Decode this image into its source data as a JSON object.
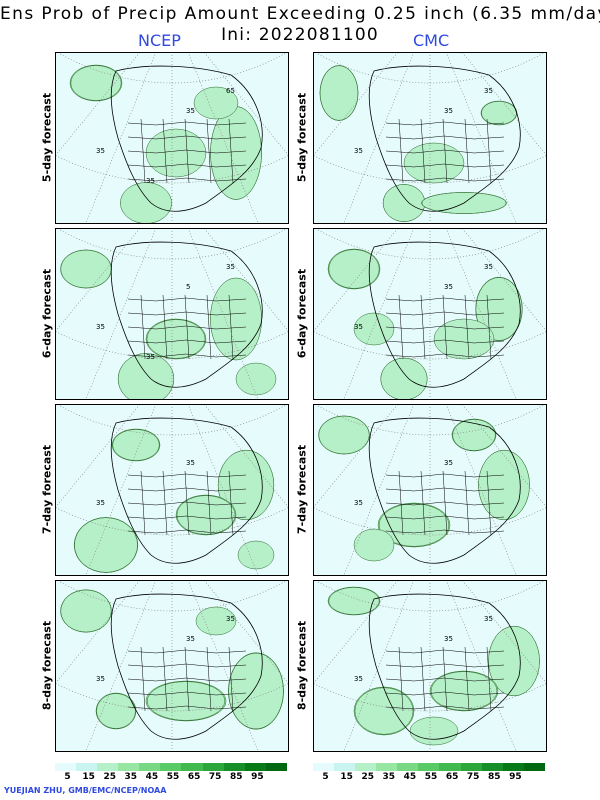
{
  "header": {
    "title": "Ens Prob of Precip Amount Exceeding 0.25 inch (6.35 mm/day)",
    "init": "Ini: 2022081100",
    "models": [
      "NCEP",
      "CMC"
    ]
  },
  "rows": [
    {
      "label": "5-day forecast"
    },
    {
      "label": "6-day forecast"
    },
    {
      "label": "7-day forecast"
    },
    {
      "label": "8-day forecast"
    }
  ],
  "panel_contour_labels": {
    "r0c0": [
      "35",
      "35",
      "65",
      "35"
    ],
    "r0c1": [
      "35",
      "35",
      "35"
    ],
    "r1c0": [
      "5",
      "35",
      "35",
      "35"
    ],
    "r1c1": [
      "35",
      "35",
      "35"
    ],
    "r2c0": [
      "35",
      "35"
    ],
    "r2c1": [
      "35",
      "35"
    ],
    "r3c0": [
      "35",
      "35",
      "35"
    ],
    "r3c1": [
      "35",
      "35",
      "35"
    ]
  },
  "colorbar": {
    "labels": [
      "5",
      "15",
      "25",
      "35",
      "45",
      "55",
      "65",
      "75",
      "85",
      "95"
    ],
    "colors": [
      "#e6fcfc",
      "#c9f4f0",
      "#b6f0c8",
      "#98e6a4",
      "#78d884",
      "#58ca66",
      "#40ba4e",
      "#2aa63a",
      "#178f28",
      "#067a16",
      "#006810"
    ]
  },
  "credit": "YUEJIAN ZHU, GMB/EMC/NCEP/NOAA"
}
